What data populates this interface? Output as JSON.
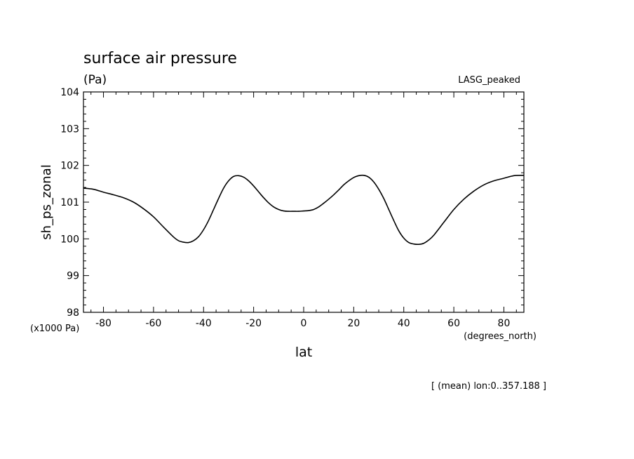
{
  "chart_data": {
    "type": "line",
    "title": "surface air pressure",
    "units_label": "(Pa)",
    "dataset_label": "LASG_peaked",
    "ylabel": "sh_ps_zonal",
    "xlabel": "lat",
    "x_units_label": "(degrees_north)",
    "y_scale_label": "(x1000 Pa)",
    "footer": "[ (mean) lon:0..357.188 ]",
    "xlim": [
      -88,
      88
    ],
    "ylim": [
      98,
      104
    ],
    "x_tick_values": [
      -80,
      -60,
      -40,
      -20,
      0,
      20,
      40,
      60,
      80
    ],
    "x_tick_labels": [
      "-80",
      "-60",
      "-40",
      "-20",
      "0",
      "20",
      "40",
      "60",
      "80"
    ],
    "y_tick_values": [
      98,
      99,
      100,
      101,
      102,
      103,
      104
    ],
    "y_tick_labels": [
      "98",
      "99",
      "100",
      "101",
      "102",
      "103",
      "104"
    ],
    "grid": false,
    "line_color": "#000000",
    "series": [
      {
        "x": [
          -88,
          -84,
          -80,
          -76,
          -72,
          -68,
          -64,
          -60,
          -56,
          -52,
          -50,
          -48,
          -46,
          -44,
          -42,
          -40,
          -38,
          -36,
          -34,
          -32,
          -30,
          -28,
          -26,
          -24,
          -22,
          -20,
          -18,
          -16,
          -14,
          -12,
          -10,
          -8,
          -6,
          -4,
          -2,
          0,
          2,
          4,
          6,
          8,
          10,
          12,
          14,
          16,
          18,
          20,
          22,
          24,
          26,
          28,
          30,
          32,
          34,
          36,
          38,
          40,
          42,
          44,
          46,
          48,
          50,
          52,
          56,
          60,
          64,
          68,
          72,
          76,
          80,
          84,
          88
        ],
        "y": [
          101.38,
          101.35,
          101.27,
          101.2,
          101.12,
          101.0,
          100.82,
          100.6,
          100.32,
          100.05,
          99.95,
          99.91,
          99.9,
          99.95,
          100.06,
          100.25,
          100.5,
          100.8,
          101.1,
          101.38,
          101.58,
          101.7,
          101.72,
          101.68,
          101.58,
          101.44,
          101.28,
          101.12,
          100.98,
          100.87,
          100.8,
          100.76,
          100.75,
          100.75,
          100.75,
          100.76,
          100.77,
          100.8,
          100.87,
          100.97,
          101.08,
          101.2,
          101.33,
          101.47,
          101.58,
          101.67,
          101.72,
          101.73,
          101.68,
          101.55,
          101.35,
          101.1,
          100.8,
          100.5,
          100.22,
          100.02,
          99.9,
          99.86,
          99.85,
          99.88,
          99.97,
          100.1,
          100.45,
          100.8,
          101.08,
          101.3,
          101.47,
          101.58,
          101.65,
          101.72,
          101.73
        ]
      }
    ]
  }
}
